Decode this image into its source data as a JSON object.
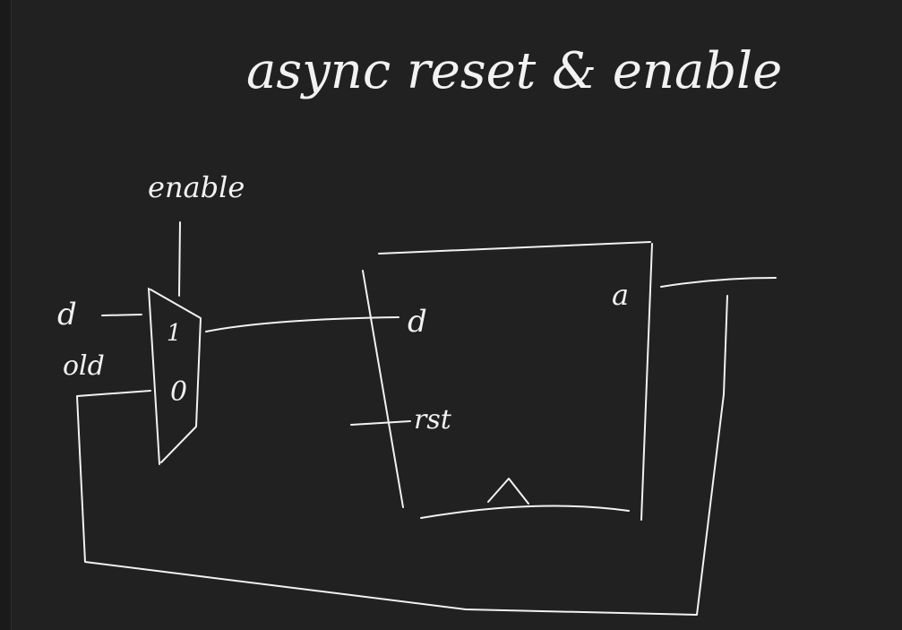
{
  "title": "async reset & enable",
  "mux": {
    "select_label": "enable",
    "input_1_label": "1",
    "input_0_label": "0",
    "input_1_signal": "d",
    "input_0_signal": "old"
  },
  "flipflop": {
    "d_label": "d",
    "rst_label": "rst",
    "q_label": "a"
  },
  "colors": {
    "background": "#212121",
    "ink": "#f2f2f2"
  }
}
